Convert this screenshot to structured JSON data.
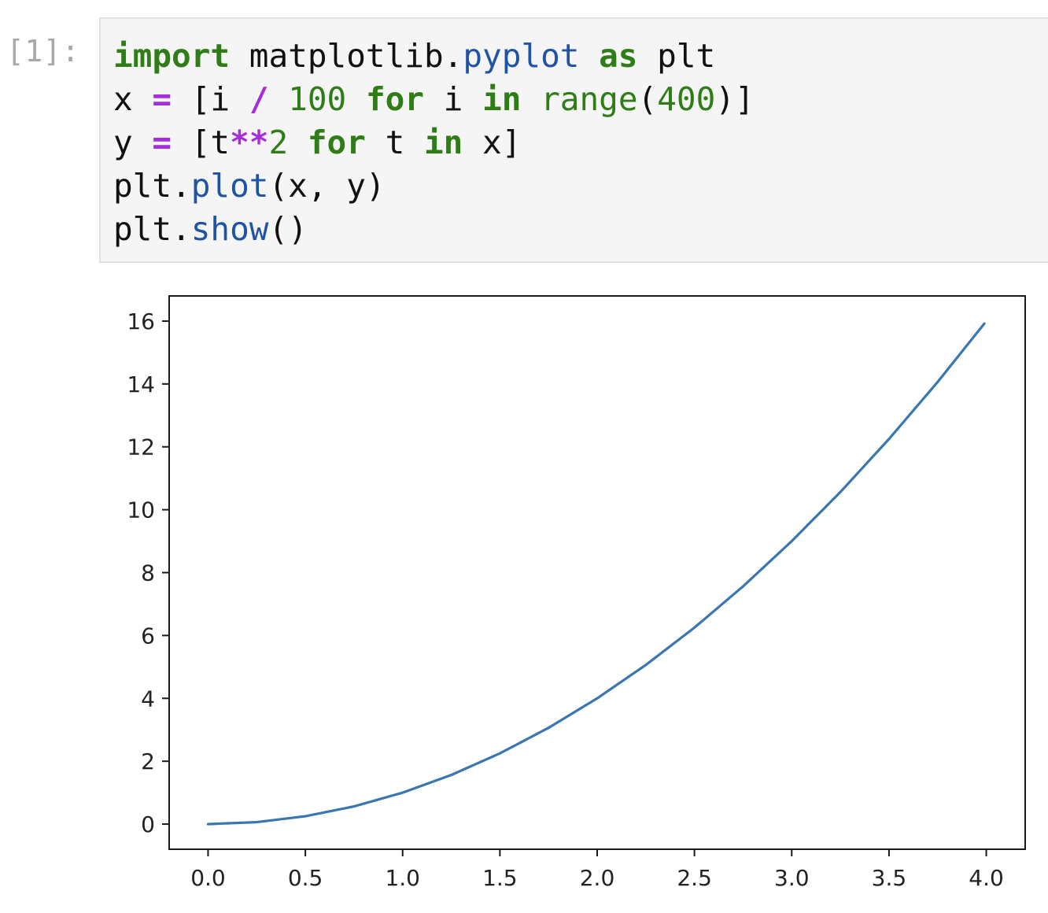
{
  "cell": {
    "prompt": "[1]:",
    "code_lines": [
      [
        {
          "t": "import",
          "c": "kw"
        },
        {
          "t": " matplotlib.",
          "c": ""
        },
        {
          "t": "pyplot",
          "c": "fn"
        },
        {
          "t": " ",
          "c": ""
        },
        {
          "t": "as",
          "c": "kw"
        },
        {
          "t": " plt",
          "c": ""
        }
      ],
      [
        {
          "t": "x ",
          "c": ""
        },
        {
          "t": "=",
          "c": "op"
        },
        {
          "t": " [i ",
          "c": ""
        },
        {
          "t": "/",
          "c": "op"
        },
        {
          "t": " ",
          "c": ""
        },
        {
          "t": "100",
          "c": "num"
        },
        {
          "t": " ",
          "c": ""
        },
        {
          "t": "for",
          "c": "kw"
        },
        {
          "t": " i ",
          "c": ""
        },
        {
          "t": "in",
          "c": "kw"
        },
        {
          "t": " ",
          "c": ""
        },
        {
          "t": "range",
          "c": "bi"
        },
        {
          "t": "(",
          "c": ""
        },
        {
          "t": "400",
          "c": "num"
        },
        {
          "t": ")]",
          "c": ""
        }
      ],
      [
        {
          "t": "y ",
          "c": ""
        },
        {
          "t": "=",
          "c": "op"
        },
        {
          "t": " [t",
          "c": ""
        },
        {
          "t": "**",
          "c": "op"
        },
        {
          "t": "2",
          "c": "num"
        },
        {
          "t": " ",
          "c": ""
        },
        {
          "t": "for",
          "c": "kw"
        },
        {
          "t": " t ",
          "c": ""
        },
        {
          "t": "in",
          "c": "kw"
        },
        {
          "t": " x]",
          "c": ""
        }
      ],
      [
        {
          "t": "plt.",
          "c": ""
        },
        {
          "t": "plot",
          "c": "fn"
        },
        {
          "t": "(x, y)",
          "c": ""
        }
      ],
      [
        {
          "t": "plt.",
          "c": ""
        },
        {
          "t": "show",
          "c": "fn"
        },
        {
          "t": "()",
          "c": ""
        }
      ]
    ]
  },
  "chart_data": {
    "type": "line",
    "title": "",
    "xlabel": "",
    "ylabel": "",
    "xlim": [
      -0.2,
      4.2
    ],
    "ylim": [
      -0.8,
      16.8
    ],
    "xticks": [
      0.0,
      0.5,
      1.0,
      1.5,
      2.0,
      2.5,
      3.0,
      3.5,
      4.0
    ],
    "xtick_labels": [
      "0.0",
      "0.5",
      "1.0",
      "1.5",
      "2.0",
      "2.5",
      "3.0",
      "3.5",
      "4.0"
    ],
    "yticks": [
      0,
      2,
      4,
      6,
      8,
      10,
      12,
      14,
      16
    ],
    "ytick_labels": [
      "0",
      "2",
      "4",
      "6",
      "8",
      "10",
      "12",
      "14",
      "16"
    ],
    "grid": false,
    "series": [
      {
        "color": "#3a76af",
        "x": [
          0.0,
          0.25,
          0.5,
          0.75,
          1.0,
          1.25,
          1.5,
          1.75,
          2.0,
          2.25,
          2.5,
          2.75,
          3.0,
          3.25,
          3.5,
          3.75,
          3.99
        ],
        "y": [
          0.0,
          0.0625,
          0.25,
          0.5625,
          1.0,
          1.5625,
          2.25,
          3.0625,
          4.0,
          5.0625,
          6.25,
          7.5625,
          9.0,
          10.5625,
          12.25,
          14.0625,
          15.92
        ]
      }
    ]
  }
}
